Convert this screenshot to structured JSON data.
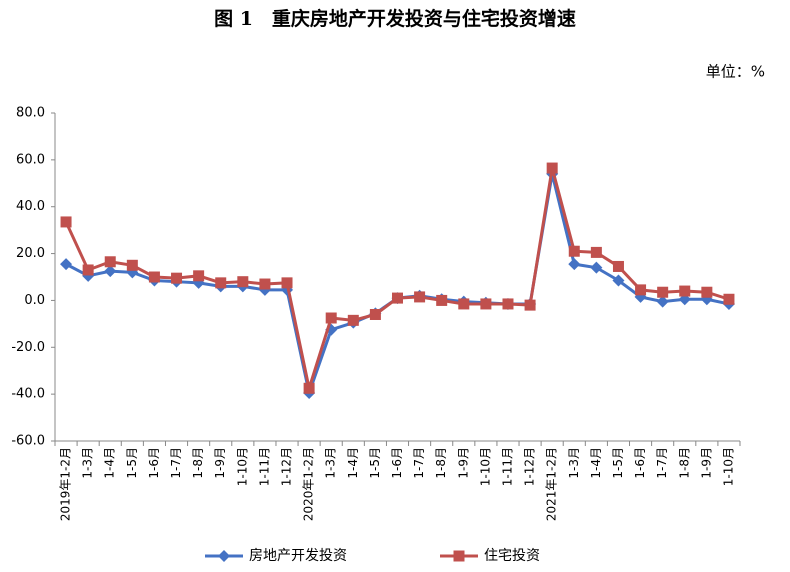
{
  "chart_data": {
    "type": "line",
    "title": "图 1　重庆房地产开发投资与住宅投资增速",
    "unit_label": "单位：%",
    "categories": [
      "2019年1-2月",
      "1-3月",
      "1-4月",
      "1-5月",
      "1-6月",
      "1-7月",
      "1-8月",
      "1-9月",
      "1-10月",
      "1-11月",
      "1-12月",
      "2020年1-2月",
      "1-3月",
      "1-4月",
      "1-5月",
      "1-6月",
      "1-7月",
      "1-8月",
      "1-9月",
      "1-10月",
      "1-11月",
      "1-12月",
      "2021年1-2月",
      "1-3月",
      "1-4月",
      "1-5月",
      "1-6月",
      "1-7月",
      "1-8月",
      "1-9月",
      "1-10月"
    ],
    "series": [
      {
        "name": "房地产开发投资",
        "color": "#4472c4",
        "marker": "diamond",
        "values": [
          15.5,
          10.5,
          12.5,
          12,
          8.5,
          8,
          7.5,
          6,
          6,
          4.5,
          4.5,
          -39.5,
          -12.5,
          -9.5,
          -5.5,
          1,
          2,
          0.5,
          -0.5,
          -1,
          -1.5,
          -1.5,
          54,
          15.5,
          14,
          8.5,
          1.5,
          -0.5,
          0.5,
          0.5,
          -1.5
        ]
      },
      {
        "name": "住宅投资",
        "color": "#c0504d",
        "marker": "square",
        "values": [
          33.5,
          13,
          16.5,
          15,
          10,
          9.5,
          10.5,
          7.5,
          8,
          7,
          7.5,
          -37.5,
          -7.5,
          -8.5,
          -6,
          1,
          1.5,
          0,
          -1.5,
          -1.5,
          -1.5,
          -2,
          56.5,
          21,
          20.5,
          14.5,
          4.5,
          3.5,
          4,
          3.5,
          0.5
        ]
      }
    ],
    "ylim": [
      -60,
      80
    ],
    "yticks": [
      {
        "value": -60,
        "label": "-60.0"
      },
      {
        "value": -40,
        "label": "-40.0"
      },
      {
        "value": -20,
        "label": "-20.0"
      },
      {
        "value": 0,
        "label": "0.0"
      },
      {
        "value": 20,
        "label": "20.0"
      },
      {
        "value": 40,
        "label": "40.0"
      },
      {
        "value": 60,
        "label": "60.0"
      },
      {
        "value": 80,
        "label": "80.0"
      }
    ],
    "grid": false,
    "legend": "bottom"
  }
}
